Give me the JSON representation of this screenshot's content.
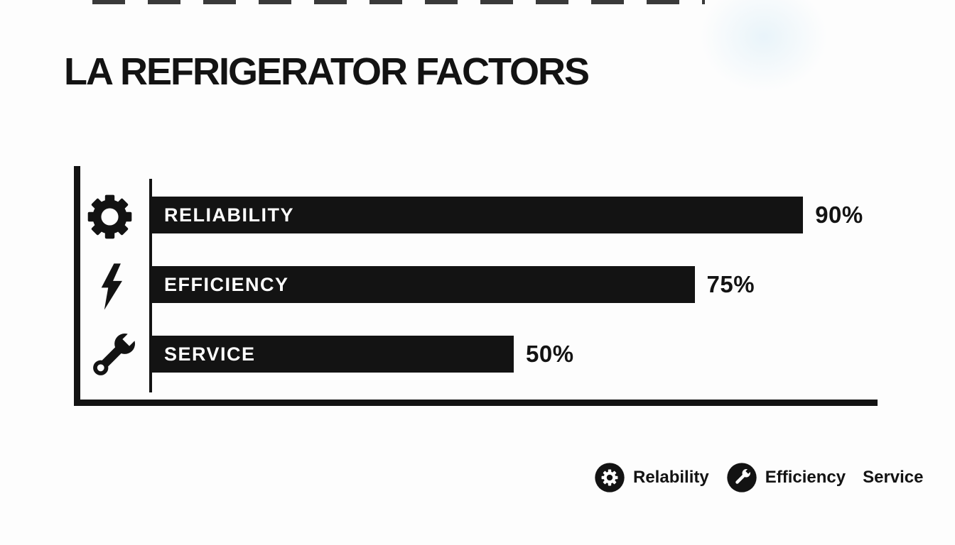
{
  "page": {
    "background_color": "#fdfdfd",
    "ink_color": "#131313"
  },
  "chart_data": {
    "type": "bar",
    "orientation": "horizontal",
    "title": "LA REFRIGERATOR FACTORS",
    "categories": [
      "RELIABILITY",
      "EFFICIENCY",
      "SERVICE"
    ],
    "values": [
      90,
      75,
      50
    ],
    "value_labels": [
      "90%",
      "75%",
      "50%"
    ],
    "row_icons": [
      "gear-icon",
      "lightning-bolt-icon",
      "wrench-icon"
    ],
    "xlim": [
      0,
      100
    ],
    "grid": false,
    "bar_color": "#131313",
    "bar_label_color": "#ffffff",
    "axis_color": "#131313",
    "legend_position": "bottom-right"
  },
  "legend": {
    "items": [
      {
        "icon": "gear-circle-icon",
        "label": "Relability"
      },
      {
        "icon": "wrench-circle-icon",
        "label": "Efficiency"
      },
      {
        "icon": null,
        "label": "Service"
      }
    ]
  }
}
